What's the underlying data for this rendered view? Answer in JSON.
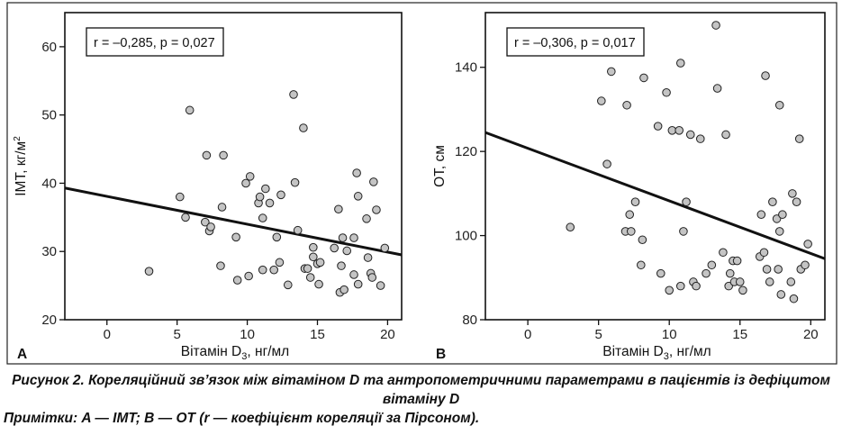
{
  "chart_data": [
    {
      "type": "scatter",
      "panel_label": "A",
      "ylabel_base": "IMT, кг/м",
      "ylabel_sup": "2",
      "xlabel_main": "Вітамін D",
      "xlabel_sub": "3",
      "xlabel_rest": ", нг/мл",
      "annotation": "r = –0,285, p = 0,027",
      "xlim": [
        -3,
        21
      ],
      "ylim": [
        20,
        65
      ],
      "xticks": [
        0,
        5,
        10,
        15,
        20
      ],
      "yticks": [
        20,
        30,
        40,
        50,
        60
      ],
      "regression": {
        "x": [
          -3,
          21
        ],
        "y": [
          39.3,
          29.5
        ]
      },
      "points": [
        [
          3.0,
          27.1
        ],
        [
          5.2,
          38.0
        ],
        [
          5.6,
          35.0
        ],
        [
          5.9,
          50.7
        ],
        [
          7.0,
          34.3
        ],
        [
          7.1,
          44.1
        ],
        [
          7.3,
          33.0
        ],
        [
          7.4,
          33.6
        ],
        [
          8.1,
          27.9
        ],
        [
          8.2,
          36.5
        ],
        [
          8.3,
          44.1
        ],
        [
          9.2,
          32.1
        ],
        [
          9.3,
          25.8
        ],
        [
          9.9,
          40.0
        ],
        [
          10.1,
          26.4
        ],
        [
          10.2,
          41.0
        ],
        [
          10.8,
          37.1
        ],
        [
          10.9,
          38.0
        ],
        [
          11.1,
          27.3
        ],
        [
          11.1,
          34.9
        ],
        [
          11.3,
          39.2
        ],
        [
          11.6,
          37.1
        ],
        [
          11.9,
          27.3
        ],
        [
          12.1,
          32.1
        ],
        [
          12.3,
          28.4
        ],
        [
          12.4,
          38.3
        ],
        [
          12.9,
          25.1
        ],
        [
          13.3,
          53.0
        ],
        [
          13.4,
          40.1
        ],
        [
          13.6,
          33.1
        ],
        [
          14.0,
          48.1
        ],
        [
          14.1,
          27.5
        ],
        [
          14.3,
          27.5
        ],
        [
          14.5,
          26.2
        ],
        [
          14.7,
          30.6
        ],
        [
          14.7,
          29.2
        ],
        [
          15.0,
          28.2
        ],
        [
          15.1,
          25.2
        ],
        [
          15.2,
          28.4
        ],
        [
          16.2,
          30.5
        ],
        [
          16.5,
          36.2
        ],
        [
          16.6,
          24.0
        ],
        [
          16.7,
          27.9
        ],
        [
          16.8,
          32.0
        ],
        [
          16.9,
          24.4
        ],
        [
          17.1,
          30.1
        ],
        [
          17.6,
          26.6
        ],
        [
          17.6,
          32.0
        ],
        [
          17.8,
          41.5
        ],
        [
          17.9,
          38.1
        ],
        [
          17.9,
          25.2
        ],
        [
          18.5,
          34.8
        ],
        [
          18.6,
          29.1
        ],
        [
          18.8,
          26.8
        ],
        [
          18.9,
          26.2
        ],
        [
          19.0,
          40.2
        ],
        [
          19.2,
          36.1
        ],
        [
          19.5,
          25.0
        ],
        [
          19.8,
          30.5
        ]
      ]
    },
    {
      "type": "scatter",
      "panel_label": "B",
      "ylabel_base": "ОТ, см",
      "ylabel_sup": "",
      "xlabel_main": "Вітамін D",
      "xlabel_sub": "3",
      "xlabel_rest": ", нг/мл",
      "annotation": "r = –0,306, p = 0,017",
      "xlim": [
        -3,
        21
      ],
      "ylim": [
        80,
        153
      ],
      "xticks": [
        0,
        5,
        10,
        15,
        20
      ],
      "yticks": [
        80,
        100,
        120,
        140
      ],
      "regression": {
        "x": [
          -3,
          21
        ],
        "y": [
          124.5,
          94.5
        ]
      },
      "points": [
        [
          3.0,
          102
        ],
        [
          5.2,
          132
        ],
        [
          5.6,
          117
        ],
        [
          5.9,
          139
        ],
        [
          6.9,
          101
        ],
        [
          7.0,
          131
        ],
        [
          7.2,
          105
        ],
        [
          7.3,
          101
        ],
        [
          7.6,
          108
        ],
        [
          8.0,
          93
        ],
        [
          8.1,
          99
        ],
        [
          8.2,
          137.5
        ],
        [
          9.2,
          126
        ],
        [
          9.4,
          91
        ],
        [
          9.8,
          134
        ],
        [
          10.0,
          87
        ],
        [
          10.2,
          125
        ],
        [
          10.7,
          125
        ],
        [
          10.8,
          141
        ],
        [
          10.8,
          88
        ],
        [
          11.0,
          101
        ],
        [
          11.2,
          108
        ],
        [
          11.5,
          124
        ],
        [
          11.7,
          89
        ],
        [
          11.9,
          88
        ],
        [
          12.2,
          123
        ],
        [
          12.6,
          91
        ],
        [
          13.0,
          93
        ],
        [
          13.3,
          150
        ],
        [
          13.4,
          135
        ],
        [
          13.8,
          96
        ],
        [
          14.0,
          124
        ],
        [
          14.2,
          88
        ],
        [
          14.3,
          91
        ],
        [
          14.5,
          94
        ],
        [
          14.6,
          89
        ],
        [
          14.8,
          94
        ],
        [
          15.0,
          89
        ],
        [
          15.2,
          87
        ],
        [
          16.4,
          95
        ],
        [
          16.5,
          105
        ],
        [
          16.7,
          96
        ],
        [
          16.8,
          138
        ],
        [
          16.9,
          92
        ],
        [
          17.1,
          89
        ],
        [
          17.3,
          108
        ],
        [
          17.6,
          104
        ],
        [
          17.7,
          92
        ],
        [
          17.8,
          101
        ],
        [
          17.8,
          131
        ],
        [
          17.9,
          86
        ],
        [
          18.0,
          105
        ],
        [
          18.6,
          89
        ],
        [
          18.7,
          110
        ],
        [
          18.8,
          85
        ],
        [
          19.0,
          108
        ],
        [
          19.2,
          123
        ],
        [
          19.3,
          92
        ],
        [
          19.6,
          93
        ],
        [
          19.8,
          98
        ]
      ]
    }
  ],
  "captions": {
    "figure": "Рисунок 2. Кореляційний зв’язок між вітаміном D та антропометричними параметрами в пацієнтів із дефіцитом вітаміну D",
    "note": "Примітки: A — IMT; B — ОТ (r — коефіцієнт кореляції за Пірсоном)."
  },
  "colors": {
    "point_fill": "#c4c4c4",
    "point_stroke": "#222222",
    "line": "#111111",
    "frame": "#111111"
  }
}
